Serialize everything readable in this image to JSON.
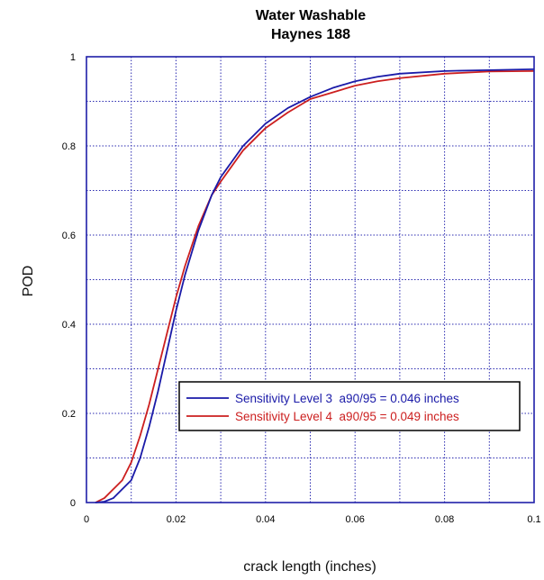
{
  "chart_data": {
    "type": "line",
    "title": [
      "Water Washable",
      "Haynes 188"
    ],
    "xlabel": "crack length (inches)",
    "ylabel": "POD",
    "xlim": [
      0,
      0.1
    ],
    "ylim": [
      0,
      1
    ],
    "x_ticks": [
      "0",
      "0.02",
      "0.04",
      "0.06",
      "0.08",
      "0.1"
    ],
    "y_ticks": [
      "0",
      "0.2",
      "0.4",
      "0.6",
      "0.8",
      "1"
    ],
    "grid": true,
    "legend_position": "lower-right",
    "series": [
      {
        "name": "Sensitivity Level 3  a90/95 = 0.046 inches",
        "color": "#1a1aa8",
        "x": [
          0.002,
          0.004,
          0.006,
          0.008,
          0.01,
          0.012,
          0.014,
          0.016,
          0.018,
          0.02,
          0.022,
          0.025,
          0.028,
          0.03,
          0.035,
          0.04,
          0.045,
          0.05,
          0.055,
          0.06,
          0.065,
          0.07,
          0.08,
          0.09,
          0.1
        ],
        "y": [
          0.0,
          0.002,
          0.01,
          0.03,
          0.05,
          0.1,
          0.17,
          0.25,
          0.34,
          0.43,
          0.51,
          0.61,
          0.69,
          0.73,
          0.8,
          0.85,
          0.885,
          0.91,
          0.93,
          0.945,
          0.955,
          0.962,
          0.968,
          0.97,
          0.972
        ]
      },
      {
        "name": "Sensitivity Level 4  a90/95 = 0.049 inches",
        "color": "#cc1f1f",
        "x": [
          0.002,
          0.004,
          0.006,
          0.008,
          0.01,
          0.012,
          0.014,
          0.016,
          0.018,
          0.02,
          0.022,
          0.025,
          0.028,
          0.03,
          0.035,
          0.04,
          0.045,
          0.05,
          0.055,
          0.06,
          0.065,
          0.07,
          0.08,
          0.09,
          0.1
        ],
        "y": [
          0.0,
          0.01,
          0.03,
          0.05,
          0.09,
          0.15,
          0.22,
          0.3,
          0.38,
          0.46,
          0.53,
          0.62,
          0.69,
          0.72,
          0.79,
          0.84,
          0.875,
          0.905,
          0.92,
          0.935,
          0.945,
          0.952,
          0.962,
          0.967,
          0.968
        ]
      }
    ]
  }
}
